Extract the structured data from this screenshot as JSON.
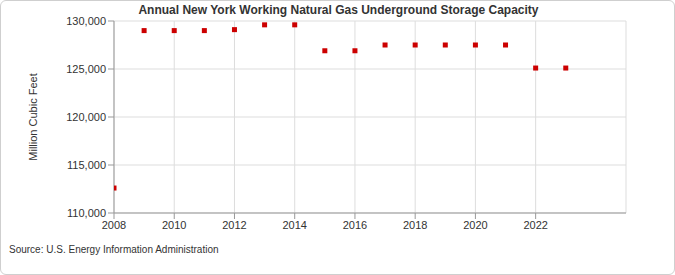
{
  "chart_data": {
    "type": "scatter",
    "title": "Annual New York Working Natural Gas Underground Storage Capacity",
    "source": "Source: U.S. Energy Information Administration",
    "y_label": "Million Cubic Feet",
    "x": [
      2008,
      2009,
      2010,
      2011,
      2012,
      2013,
      2014,
      2015,
      2016,
      2017,
      2018,
      2019,
      2020,
      2021,
      2022,
      2023
    ],
    "values": [
      112600,
      129000,
      129000,
      129000,
      129100,
      129600,
      129600,
      126900,
      126900,
      127500,
      127500,
      127500,
      127500,
      127500,
      125100,
      125100
    ],
    "color": "#cc0000",
    "marker": "square",
    "xlim": [
      2008,
      2025
    ],
    "xticks": [
      2008,
      2010,
      2012,
      2014,
      2016,
      2018,
      2020,
      2022
    ],
    "ylim": [
      110000,
      130000
    ],
    "yticks": [
      {
        "value": 110000,
        "label": "110,000"
      },
      {
        "value": 115000,
        "label": "115,000"
      },
      {
        "value": 120000,
        "label": "120,000"
      },
      {
        "value": 125000,
        "label": "125,000"
      },
      {
        "value": 130000,
        "label": "130,000"
      }
    ],
    "grid": true
  }
}
